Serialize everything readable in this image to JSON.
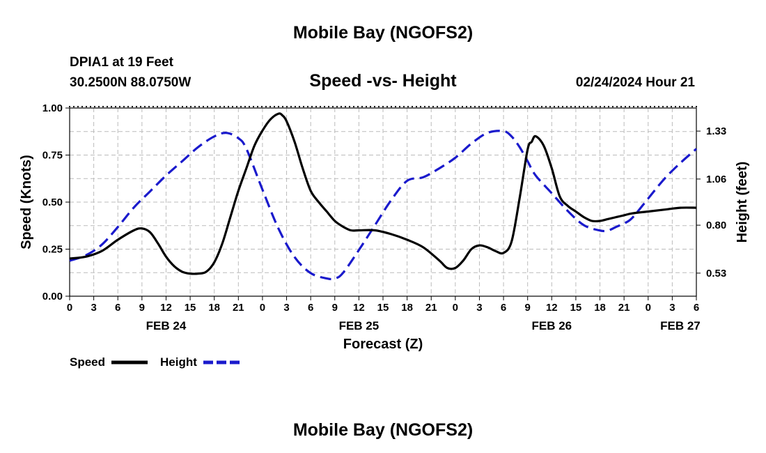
{
  "header": {
    "title": "Mobile Bay (NGOFS2)",
    "station": "DPIA1 at 19 Feet",
    "coords": "30.2500N  88.0750W",
    "timestamp": "02/24/2024 Hour 21",
    "footer_title": "Mobile Bay (NGOFS2)"
  },
  "legend": {
    "speed_label": "Speed",
    "height_label": "Height"
  },
  "colors": {
    "speed": "#000000",
    "height": "#1a1acc",
    "grid": "#bbbbbb"
  },
  "chart_data": {
    "type": "line",
    "title": "Speed -vs- Height",
    "xlabel": "Forecast (Z)",
    "ylabel": "Speed (Knots)",
    "y2label": "Height (feet)",
    "xlim": [
      0,
      78
    ],
    "ylim": [
      0,
      1.0
    ],
    "y2lim": [
      0.4,
      1.46
    ],
    "x_ticks": [
      0,
      3,
      6,
      9,
      12,
      15,
      18,
      21,
      24,
      27,
      30,
      33,
      36,
      39,
      42,
      45,
      48,
      51,
      54,
      57,
      60,
      63,
      66,
      69,
      72,
      75,
      78
    ],
    "x_tick_labels": [
      "0",
      "3",
      "6",
      "9",
      "12",
      "15",
      "18",
      "21",
      "0",
      "3",
      "6",
      "9",
      "12",
      "15",
      "18",
      "21",
      "0",
      "3",
      "6",
      "9",
      "12",
      "15",
      "18",
      "21",
      "0",
      "3",
      "6"
    ],
    "y_ticks": [
      0,
      0.25,
      0.5,
      0.75,
      1.0
    ],
    "y_tick_labels": [
      "0.00",
      "0.25",
      "0.50",
      "0.75",
      "1.00"
    ],
    "y2_ticks": [
      0.53,
      0.8,
      1.06,
      1.33
    ],
    "y2_tick_labels": [
      "0.53",
      "0.80",
      "1.06",
      "1.33"
    ],
    "date_labels": [
      {
        "x": 12,
        "label": "FEB 24"
      },
      {
        "x": 36,
        "label": "FEB 25"
      },
      {
        "x": 60,
        "label": "FEB 26"
      },
      {
        "x": 76,
        "label": "FEB 27"
      }
    ],
    "grid": true,
    "series": [
      {
        "name": "Speed",
        "axis": "left",
        "style": "solid",
        "x": [
          0,
          2,
          4,
          6,
          8,
          9,
          10,
          11,
          12,
          13,
          14,
          15,
          16,
          17,
          18,
          19,
          20,
          21,
          22,
          23,
          24,
          25,
          26,
          26.5,
          27,
          28,
          29,
          30,
          31,
          32,
          33,
          34,
          35,
          36,
          38,
          40,
          42,
          44,
          46,
          47,
          48,
          49,
          50,
          51,
          52,
          53,
          54,
          55,
          56,
          57,
          57.5,
          58,
          59,
          60,
          61,
          62,
          63,
          64,
          65,
          66,
          67,
          68,
          69,
          70,
          72,
          74,
          76,
          78
        ],
        "values": [
          0.2,
          0.21,
          0.24,
          0.3,
          0.35,
          0.36,
          0.34,
          0.28,
          0.21,
          0.16,
          0.13,
          0.12,
          0.12,
          0.13,
          0.18,
          0.28,
          0.42,
          0.56,
          0.68,
          0.8,
          0.88,
          0.94,
          0.97,
          0.96,
          0.93,
          0.82,
          0.68,
          0.56,
          0.5,
          0.45,
          0.4,
          0.37,
          0.35,
          0.35,
          0.35,
          0.33,
          0.3,
          0.26,
          0.19,
          0.15,
          0.15,
          0.19,
          0.25,
          0.27,
          0.26,
          0.24,
          0.23,
          0.29,
          0.52,
          0.78,
          0.82,
          0.85,
          0.8,
          0.68,
          0.53,
          0.48,
          0.45,
          0.42,
          0.4,
          0.4,
          0.41,
          0.42,
          0.43,
          0.44,
          0.45,
          0.46,
          0.47,
          0.47
        ]
      },
      {
        "name": "Height",
        "axis": "right",
        "style": "dashed",
        "x": [
          0,
          2,
          4,
          6,
          8,
          10,
          12,
          14,
          16,
          18,
          19.5,
          21,
          22,
          24,
          26,
          28,
          30,
          32,
          33,
          34,
          36,
          38,
          40,
          42,
          44,
          46,
          48,
          50,
          52,
          54,
          55,
          56,
          57,
          58,
          60,
          62,
          64,
          66,
          67,
          68,
          69,
          70,
          72,
          74,
          76,
          78
        ],
        "values": [
          0.6,
          0.63,
          0.69,
          0.79,
          0.9,
          0.99,
          1.08,
          1.16,
          1.24,
          1.3,
          1.32,
          1.29,
          1.23,
          1.0,
          0.78,
          0.62,
          0.53,
          0.5,
          0.5,
          0.53,
          0.66,
          0.8,
          0.94,
          1.05,
          1.07,
          1.12,
          1.18,
          1.26,
          1.32,
          1.33,
          1.3,
          1.24,
          1.16,
          1.08,
          0.98,
          0.88,
          0.8,
          0.77,
          0.77,
          0.79,
          0.81,
          0.84,
          0.95,
          1.06,
          1.15,
          1.23
        ]
      }
    ]
  }
}
